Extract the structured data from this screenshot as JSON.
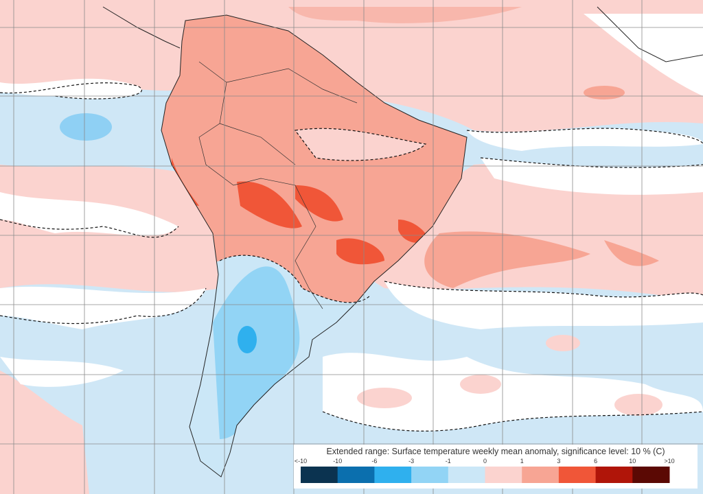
{
  "legend": {
    "title": "Extended range: Surface temperature weekly mean anomaly, significance level: 10 % (C)",
    "ticks": [
      "<-10",
      "-10",
      "-6",
      "-3",
      "-1",
      "0",
      "1",
      "3",
      "6",
      "10",
      ">10"
    ],
    "colors": [
      "#0b3350",
      "#0b6fae",
      "#2fb0ee",
      "#92d4f5",
      "#cbe7f7",
      "#fbd3cf",
      "#f7a594",
      "#f05638",
      "#b01509",
      "#5b0904"
    ]
  }
}
